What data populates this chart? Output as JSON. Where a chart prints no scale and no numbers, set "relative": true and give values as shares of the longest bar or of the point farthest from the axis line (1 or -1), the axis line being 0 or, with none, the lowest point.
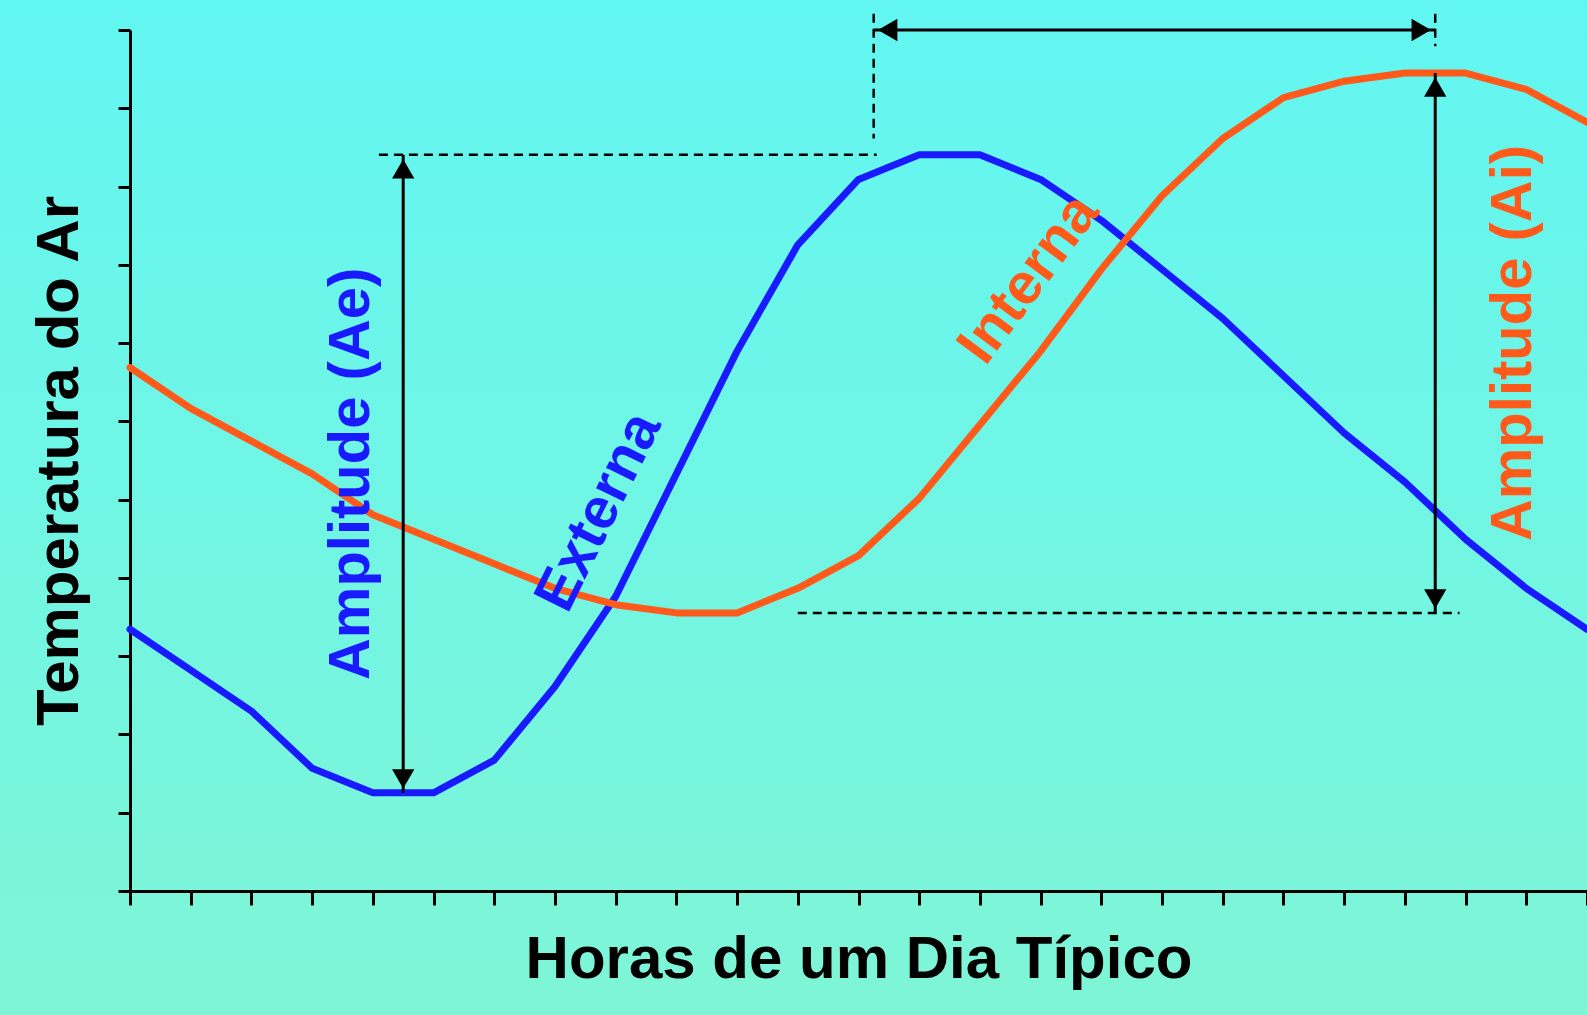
{
  "chart_data": {
    "type": "line",
    "relative": true,
    "xlabel": "Horas de um Dia Típico",
    "ylabel": "Temperatura do Ar",
    "categories": [
      null,
      null,
      null,
      null,
      null,
      null,
      null,
      null,
      null,
      null,
      null,
      null,
      null,
      null,
      null,
      null,
      null,
      null,
      null,
      null,
      null,
      null,
      null,
      null,
      null
    ],
    "series": [
      {
        "name": "Externa",
        "color": "#1a1aff",
        "values": [
          0.32,
          0.27,
          0.22,
          0.15,
          0.12,
          0.12,
          0.16,
          0.25,
          0.36,
          0.51,
          0.66,
          0.79,
          0.87,
          0.9,
          0.9,
          0.87,
          0.82,
          0.76,
          0.7,
          0.63,
          0.56,
          0.5,
          0.43,
          0.37,
          0.32
        ]
      },
      {
        "name": "Interna",
        "color": "#ff5a1a",
        "values": [
          0.64,
          0.59,
          0.55,
          0.51,
          0.46,
          0.43,
          0.4,
          0.37,
          0.35,
          0.34,
          0.34,
          0.37,
          0.41,
          0.48,
          0.57,
          0.66,
          0.76,
          0.85,
          0.92,
          0.97,
          0.99,
          1,
          1,
          0.98,
          0.94
        ]
      }
    ],
    "annotations": [
      "Amplitude (Ae)",
      "Amplitude (Ai)"
    ],
    "line_style": "solid"
  }
}
